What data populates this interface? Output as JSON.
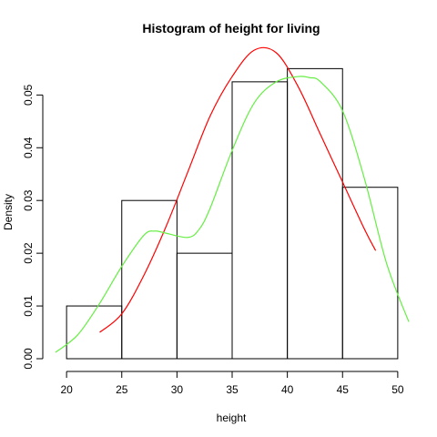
{
  "chart_data": {
    "type": "bar",
    "title": "Histogram of height for living",
    "xlabel": "height",
    "ylabel": "Density",
    "xlim": [
      19,
      51
    ],
    "ylim": [
      0,
      0.058
    ],
    "x_ticks": [
      20,
      25,
      30,
      35,
      40,
      45,
      50
    ],
    "y_ticks": [
      0.0,
      0.01,
      0.02,
      0.03,
      0.04,
      0.05
    ],
    "y_tick_labels": [
      "0.00",
      "0.01",
      "0.02",
      "0.03",
      "0.04",
      "0.05"
    ],
    "bins": [
      {
        "start": 20,
        "end": 25,
        "density": 0.01
      },
      {
        "start": 25,
        "end": 30,
        "density": 0.03
      },
      {
        "start": 30,
        "end": 35,
        "density": 0.02
      },
      {
        "start": 35,
        "end": 40,
        "density": 0.0525
      },
      {
        "start": 40,
        "end": 45,
        "density": 0.055
      },
      {
        "start": 45,
        "end": 50,
        "density": 0.0325
      }
    ],
    "series": [
      {
        "color": "#ff0000",
        "x": [
          23,
          25,
          27,
          29,
          31,
          33,
          35,
          37,
          39,
          41,
          43,
          45,
          47,
          48
        ],
        "y": [
          0.005,
          0.0085,
          0.0158,
          0.025,
          0.0355,
          0.046,
          0.0535,
          0.0585,
          0.058,
          0.0515,
          0.0425,
          0.0335,
          0.0245,
          0.0205
        ]
      },
      {
        "color": "#66ee44",
        "x": [
          19,
          21,
          23,
          25,
          27,
          28,
          29,
          31,
          32,
          33,
          35,
          37,
          39,
          41,
          42,
          43,
          45,
          47,
          49,
          51
        ],
        "y": [
          0.0012,
          0.0045,
          0.0105,
          0.0175,
          0.0234,
          0.0242,
          0.0238,
          0.023,
          0.0245,
          0.0285,
          0.0395,
          0.0485,
          0.0525,
          0.0535,
          0.0533,
          0.0525,
          0.047,
          0.034,
          0.018,
          0.007
        ]
      }
    ]
  }
}
